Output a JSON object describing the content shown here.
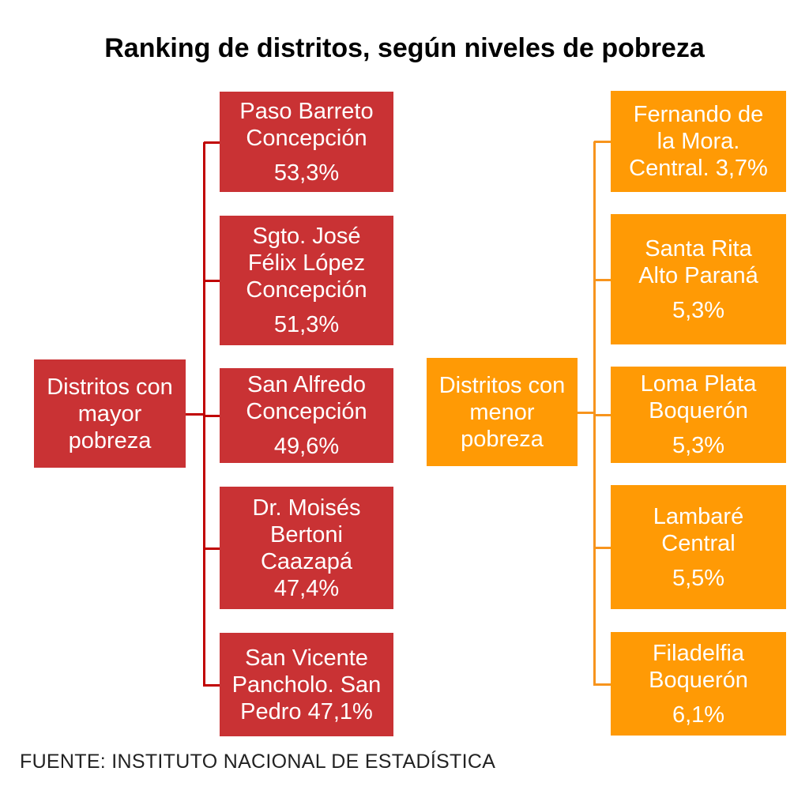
{
  "title": "Ranking de distritos, según niveles de pobreza",
  "colors": {
    "high": "#C93234",
    "low": "#FF9A05",
    "high_line": "#C00000",
    "low_line": "#F7941D"
  },
  "high": {
    "root": [
      "Distritos con",
      "mayor",
      "pobreza"
    ],
    "items": [
      {
        "lines": [
          "Paso Barreto",
          "Concepción"
        ],
        "pct": "53,3%"
      },
      {
        "lines": [
          "Sgto. José",
          "Félix López",
          "Concepción"
        ],
        "pct": "51,3%"
      },
      {
        "lines": [
          "San Alfredo",
          "Concepción"
        ],
        "pct": "49,6%"
      },
      {
        "lines": [
          "Dr. Moisés",
          "Bertoni",
          "Caazapá",
          "47,4%"
        ]
      },
      {
        "lines": [
          "San Vicente",
          "Pancholo. San",
          "Pedro 47,1%"
        ]
      }
    ]
  },
  "low": {
    "root": [
      "Distritos con",
      "menor",
      "pobreza"
    ],
    "items": [
      {
        "lines": [
          "Fernando de",
          "la Mora.",
          "Central. 3,7%"
        ]
      },
      {
        "lines": [
          "Santa Rita",
          "Alto Paraná"
        ],
        "pct": "5,3%"
      },
      {
        "lines": [
          "Loma Plata",
          "Boquerón"
        ],
        "pct": "5,3%"
      },
      {
        "lines": [
          "Lambaré",
          "Central"
        ],
        "pct": "5,5%"
      },
      {
        "lines": [
          "Filadelfia",
          "Boquerón"
        ],
        "pct": "6,1%"
      }
    ]
  },
  "footer": "FUENTE: INSTITUTO NACIONAL DE ESTADÍSTICA"
}
